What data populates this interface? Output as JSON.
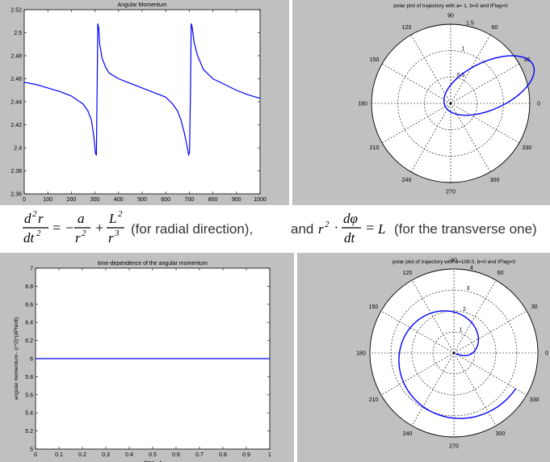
{
  "chart_data": [
    {
      "type": "line",
      "title": "Angular Momentum",
      "xlabel": "",
      "ylabel": "",
      "xlim": [
        0,
        1000
      ],
      "ylim": [
        2.36,
        2.52
      ],
      "xticks": [
        0,
        100,
        200,
        300,
        400,
        500,
        600,
        700,
        800,
        900,
        1000
      ],
      "yticks": [
        2.36,
        2.38,
        2.4,
        2.42,
        2.44,
        2.46,
        2.48,
        2.5,
        2.52
      ],
      "ytick_labels": [
        "2.36",
        "2.38",
        "2.4",
        "2.42",
        "2.44",
        "2.46",
        "2.48",
        "2.5",
        "2.52"
      ],
      "grid": false,
      "series": [
        {
          "color": "#0000ff",
          "x": [
            0,
            50,
            100,
            150,
            200,
            250,
            270,
            285,
            295,
            302,
            306,
            309,
            312,
            316,
            320,
            330,
            345,
            360,
            400,
            450,
            500,
            550,
            600,
            630,
            650,
            665,
            680,
            690,
            697,
            701,
            705,
            708,
            712,
            720,
            735,
            760,
            800,
            850,
            900,
            950,
            1000
          ],
          "y": [
            2.457,
            2.455,
            2.452,
            2.449,
            2.445,
            2.438,
            2.432,
            2.424,
            2.41,
            2.395,
            2.394,
            2.45,
            2.508,
            2.504,
            2.49,
            2.478,
            2.47,
            2.465,
            2.46,
            2.456,
            2.452,
            2.448,
            2.444,
            2.438,
            2.432,
            2.424,
            2.412,
            2.402,
            2.394,
            2.396,
            2.45,
            2.508,
            2.505,
            2.492,
            2.48,
            2.468,
            2.46,
            2.455,
            2.45,
            2.446,
            2.443
          ]
        }
      ]
    },
    {
      "type": "polar",
      "title": "polar plot of trajectory with a= 1, b=0 and tFlag=0",
      "rmax": 1.5,
      "rticks": [
        0.5,
        1,
        1.5
      ],
      "rtick_labels": [
        "0.5",
        "1",
        "1.5"
      ],
      "angle_ticks": [
        0,
        30,
        60,
        90,
        120,
        150,
        180,
        210,
        240,
        270,
        300,
        330
      ],
      "angle_labels": [
        "0",
        "30",
        "60",
        "90",
        "120",
        "150",
        "180",
        "210",
        "240",
        "270",
        "300",
        "330"
      ],
      "series": [
        {
          "type": "ellipse",
          "color": "#0000ff",
          "semi_major": 0.92,
          "semi_minor": 0.45,
          "rotation_deg": 25,
          "focus": [
            0,
            0
          ]
        }
      ]
    },
    {
      "type": "line",
      "title": "time-dependence of the angular momentum",
      "xlabel": "time - t",
      "ylabel": "angular momentum - (r^2)*(dPhi/dt)",
      "xlim": [
        0,
        1
      ],
      "ylim": [
        5,
        7
      ],
      "xticks": [
        0,
        0.1,
        0.2,
        0.3,
        0.4,
        0.5,
        0.6,
        0.7,
        0.8,
        0.9,
        1
      ],
      "xtick_labels": [
        "0",
        "0.1",
        "0.2",
        "0.3",
        "0.4",
        "0.5",
        "0.6",
        "0.7",
        "0.8",
        "0.9",
        "1"
      ],
      "yticks": [
        5,
        5.2,
        5.4,
        5.6,
        5.8,
        6,
        6.2,
        6.4,
        6.6,
        6.8,
        7
      ],
      "ytick_labels": [
        "5",
        "5.2",
        "5.4",
        "5.6",
        "5.8",
        "6",
        "6.2",
        "6.4",
        "6.6",
        "6.8",
        "7"
      ],
      "grid": false,
      "series": [
        {
          "color": "#0000ff",
          "x": [
            0,
            1
          ],
          "y": [
            6,
            6
          ]
        }
      ]
    },
    {
      "type": "polar",
      "title": "polar plot of trajectory with a=108.0, b=0 and tFlag=0",
      "rmax": 4,
      "rticks": [
        1,
        2,
        3,
        4
      ],
      "rtick_labels": [
        "1",
        "2",
        "3",
        "4"
      ],
      "angle_ticks": [
        0,
        30,
        60,
        90,
        120,
        150,
        180,
        210,
        240,
        270,
        300,
        330
      ],
      "angle_labels": [
        "0",
        "30",
        "60",
        "90",
        "120",
        "150",
        "180",
        "210",
        "240",
        "270",
        "300",
        "330"
      ],
      "series": [
        {
          "type": "spiral",
          "color": "#0000ff",
          "theta_start_deg": -20,
          "theta_end_deg": 330,
          "r_start": 0.1,
          "r_end": 3.4
        }
      ]
    }
  ],
  "equation": {
    "radial_suffix": "(for radial direction),",
    "and_word": "and",
    "transverse_suffix": "(for the transverse one)"
  }
}
